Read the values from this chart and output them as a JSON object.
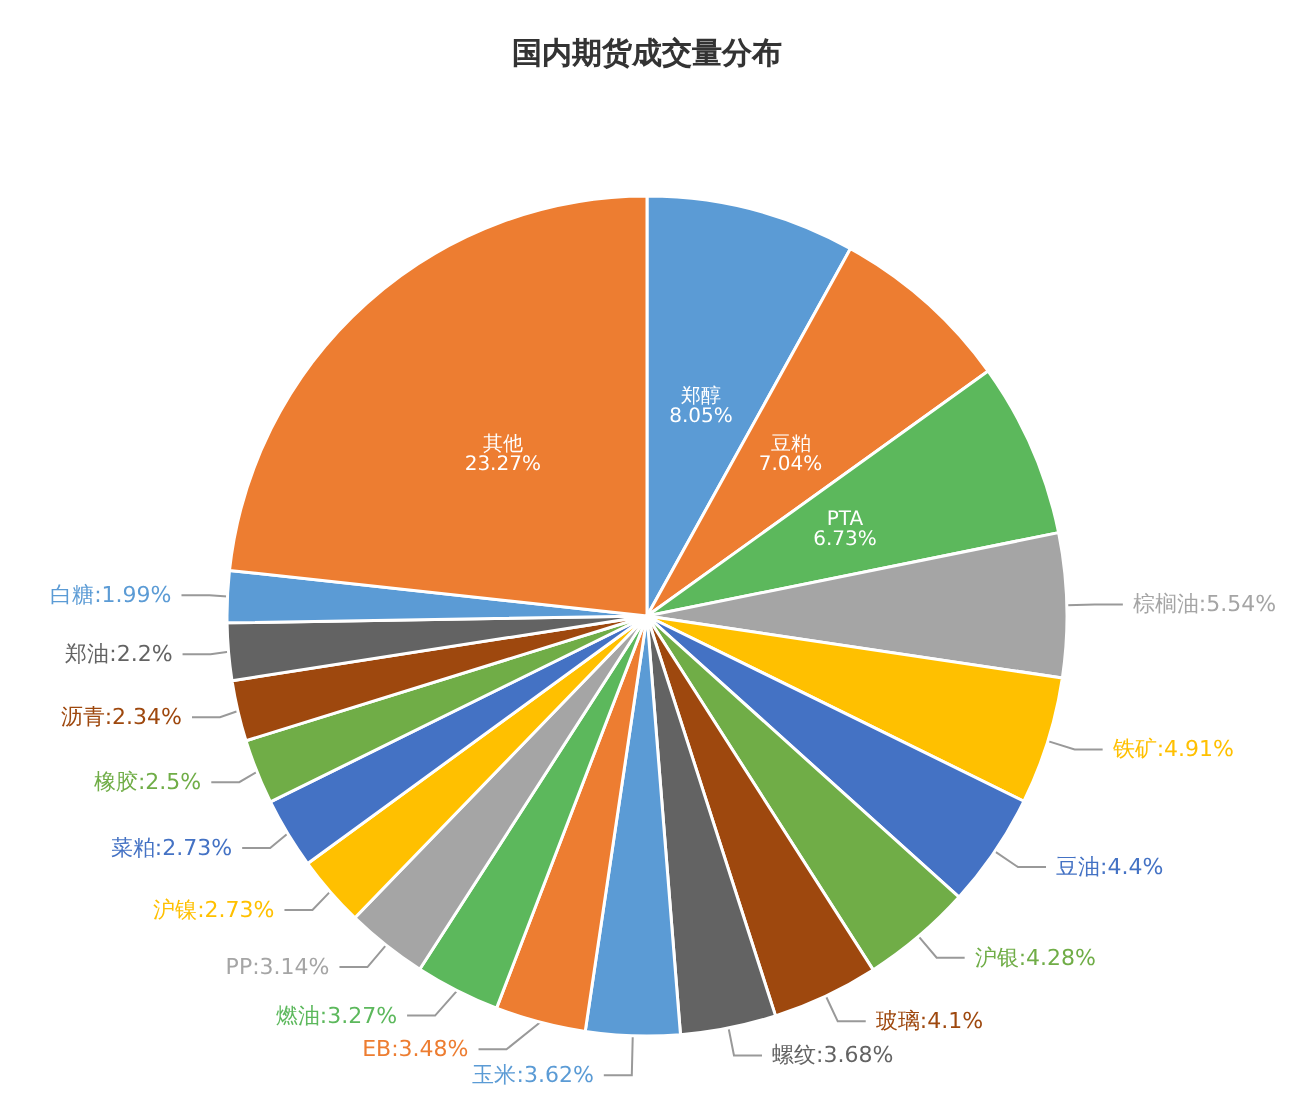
{
  "chart_data": {
    "type": "pie",
    "title": "国内期货成交量分布",
    "categories": [
      "郑醇",
      "豆粕",
      "PTA",
      "棕榈油",
      "铁矿",
      "豆油",
      "沪银",
      "玻璃",
      "螺纹",
      "玉米",
      "EB",
      "燃油",
      "PP",
      "沪镍",
      "菜粕",
      "橡胶",
      "沥青",
      "郑油",
      "白糖",
      "其他"
    ],
    "values": [
      8.05,
      7.04,
      6.73,
      5.54,
      4.91,
      4.4,
      4.28,
      4.1,
      3.68,
      3.62,
      3.48,
      3.27,
      3.14,
      2.73,
      2.73,
      2.5,
      2.34,
      2.2,
      1.99,
      23.27
    ],
    "colors": [
      "#5b9bd5",
      "#ed7d31",
      "#5cb85c",
      "#a5a5a5",
      "#ffc000",
      "#4472c4",
      "#70ad47",
      "#9e480e",
      "#636363",
      "#5b9bd5",
      "#ed7d31",
      "#5cb85c",
      "#a5a5a5",
      "#ffc000",
      "#4472c4",
      "#70ad47",
      "#9e480e",
      "#636363",
      "#5b9bd5",
      "#ed7d31"
    ],
    "value_labels": [
      "8.05%",
      "7.04%",
      "6.73%",
      "5.54%",
      "4.91%",
      "4.4%",
      "4.28%",
      "4.1%",
      "3.68%",
      "3.62%",
      "3.48%",
      "3.27%",
      "3.14%",
      "2.73%",
      "2.73%",
      "2.5%",
      "2.34%",
      "2.2%",
      "1.99%",
      "23.27%"
    ],
    "legend": false
  }
}
